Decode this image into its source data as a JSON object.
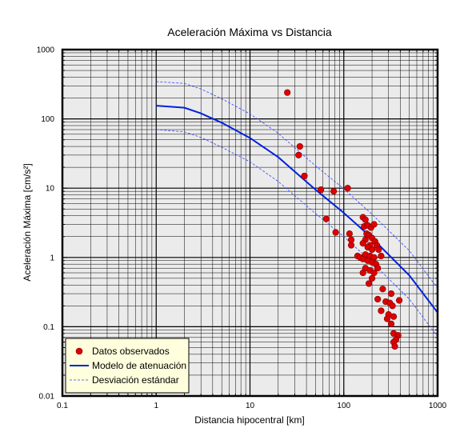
{
  "chart_data": {
    "type": "scatter",
    "title": "Aceleración Máxima vs Distancia",
    "xlabel": "Distancia hipocentral [km]",
    "ylabel": "Aceleración Máxima [cm/s²]",
    "xscale": "log",
    "yscale": "log",
    "xlim": [
      0.1,
      1000
    ],
    "ylim": [
      0.01,
      1000
    ],
    "grid": true,
    "legend_position": "bottom-left",
    "x_tick_labels": [
      "0.1",
      "1",
      "10",
      "100",
      "1000"
    ],
    "y_tick_labels": [
      "0.01",
      "0.1",
      "1",
      "10",
      "100",
      "1000"
    ],
    "colors": {
      "plot_background": "#ebebeb",
      "grid": "#000000",
      "points": "#dd0000",
      "point_edge": "#7a0000",
      "model": "#0022dd",
      "std_dev": "#3344ff",
      "legend_background": "#ffffdd"
    },
    "series": [
      {
        "name": "Datos observados",
        "kind": "points",
        "points": [
          [
            25,
            240
          ],
          [
            34,
            40
          ],
          [
            33,
            30
          ],
          [
            38,
            15
          ],
          [
            57,
            9.5
          ],
          [
            78,
            9
          ],
          [
            110,
            10
          ],
          [
            65,
            3.6
          ],
          [
            82,
            2.3
          ],
          [
            115,
            2.2
          ],
          [
            120,
            1.8
          ],
          [
            120,
            1.5
          ],
          [
            160,
            3.8
          ],
          [
            170,
            3.5
          ],
          [
            165,
            2.8
          ],
          [
            180,
            2.9
          ],
          [
            195,
            2.7
          ],
          [
            210,
            3
          ],
          [
            175,
            2.2
          ],
          [
            185,
            2.1
          ],
          [
            200,
            1.9
          ],
          [
            170,
            1.8
          ],
          [
            160,
            1.6
          ],
          [
            190,
            1.5
          ],
          [
            215,
            1.7
          ],
          [
            225,
            1.5
          ],
          [
            180,
            1.4
          ],
          [
            200,
            1.3
          ],
          [
            235,
            1.3
          ],
          [
            140,
            1.05
          ],
          [
            150,
            1.0
          ],
          [
            170,
            1.1
          ],
          [
            190,
            1.05
          ],
          [
            210,
            1.0
          ],
          [
            250,
            1.05
          ],
          [
            160,
            0.95
          ],
          [
            180,
            0.9
          ],
          [
            200,
            0.85
          ],
          [
            220,
            0.8
          ],
          [
            170,
            0.7
          ],
          [
            190,
            0.65
          ],
          [
            160,
            0.6
          ],
          [
            210,
            0.6
          ],
          [
            230,
            0.7
          ],
          [
            200,
            0.5
          ],
          [
            185,
            0.42
          ],
          [
            260,
            0.35
          ],
          [
            320,
            0.3
          ],
          [
            230,
            0.25
          ],
          [
            280,
            0.23
          ],
          [
            310,
            0.22
          ],
          [
            330,
            0.2
          ],
          [
            250,
            0.17
          ],
          [
            300,
            0.15
          ],
          [
            340,
            0.14
          ],
          [
            290,
            0.13
          ],
          [
            320,
            0.11
          ],
          [
            390,
            0.24
          ],
          [
            340,
            0.08
          ],
          [
            380,
            0.075
          ],
          [
            360,
            0.065
          ],
          [
            340,
            0.06
          ],
          [
            350,
            0.052
          ]
        ]
      },
      {
        "name": "Modelo de atenuación",
        "kind": "line",
        "style": "solid",
        "points": [
          [
            1,
            155
          ],
          [
            2,
            145
          ],
          [
            3,
            120
          ],
          [
            5,
            88
          ],
          [
            10,
            53
          ],
          [
            20,
            28
          ],
          [
            50,
            9.5
          ],
          [
            100,
            4.4
          ],
          [
            200,
            1.9
          ],
          [
            500,
            0.55
          ],
          [
            1000,
            0.16
          ]
        ]
      },
      {
        "name": "Desviación estándar",
        "kind": "line",
        "style": "dashed",
        "points": [
          [
            1,
            345
          ],
          [
            2,
            325
          ],
          [
            3,
            270
          ],
          [
            5,
            195
          ],
          [
            10,
            118
          ],
          [
            20,
            62
          ],
          [
            50,
            21
          ],
          [
            100,
            9.8
          ],
          [
            200,
            4.2
          ],
          [
            500,
            1.25
          ],
          [
            1000,
            0.36
          ]
        ]
      },
      {
        "kind": "line",
        "style": "dashed",
        "points": [
          [
            1,
            70
          ],
          [
            2,
            65
          ],
          [
            3,
            54
          ],
          [
            5,
            39
          ],
          [
            10,
            24
          ],
          [
            20,
            12.5
          ],
          [
            50,
            4.3
          ],
          [
            100,
            2.0
          ],
          [
            200,
            0.85
          ],
          [
            500,
            0.25
          ],
          [
            1000,
            0.072
          ]
        ]
      }
    ]
  }
}
